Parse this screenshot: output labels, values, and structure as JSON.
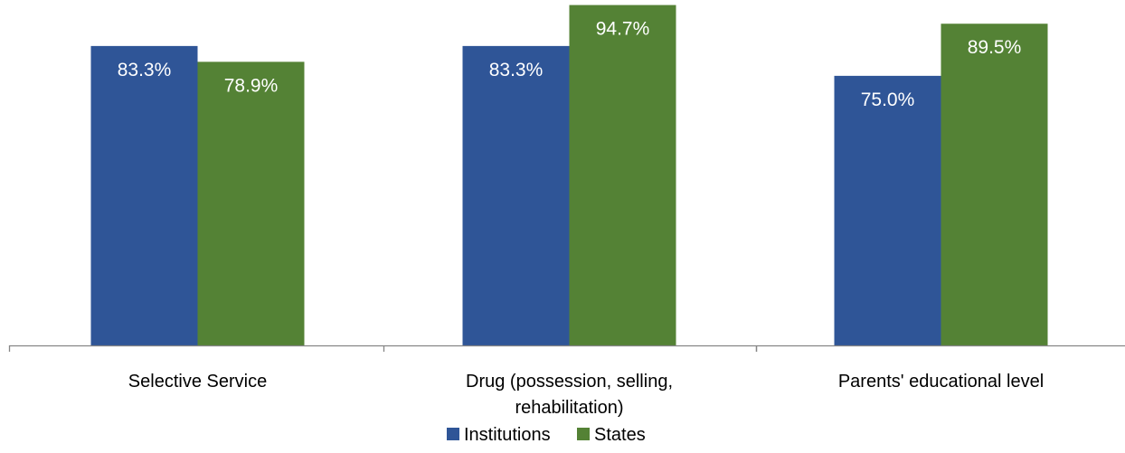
{
  "chart_data": {
    "type": "bar",
    "title": "",
    "xlabel": "",
    "ylabel": "",
    "ylim": [
      0,
      100
    ],
    "grid": false,
    "legend_position": "bottom",
    "categories": [
      [
        "Selective Service"
      ],
      [
        "Drug (possession, selling,",
        "rehabilitation)"
      ],
      [
        "Parents' educational level"
      ]
    ],
    "series": [
      {
        "name": "Institutions",
        "color": "#2F5597",
        "values": [
          83.3,
          83.3,
          75.0
        ],
        "labels": [
          "83.3%",
          "83.3%",
          "75.0%"
        ]
      },
      {
        "name": "States",
        "color": "#548235",
        "values": [
          78.9,
          94.7,
          89.5
        ],
        "labels": [
          "78.9%",
          "94.7%",
          "89.5%"
        ]
      }
    ]
  }
}
